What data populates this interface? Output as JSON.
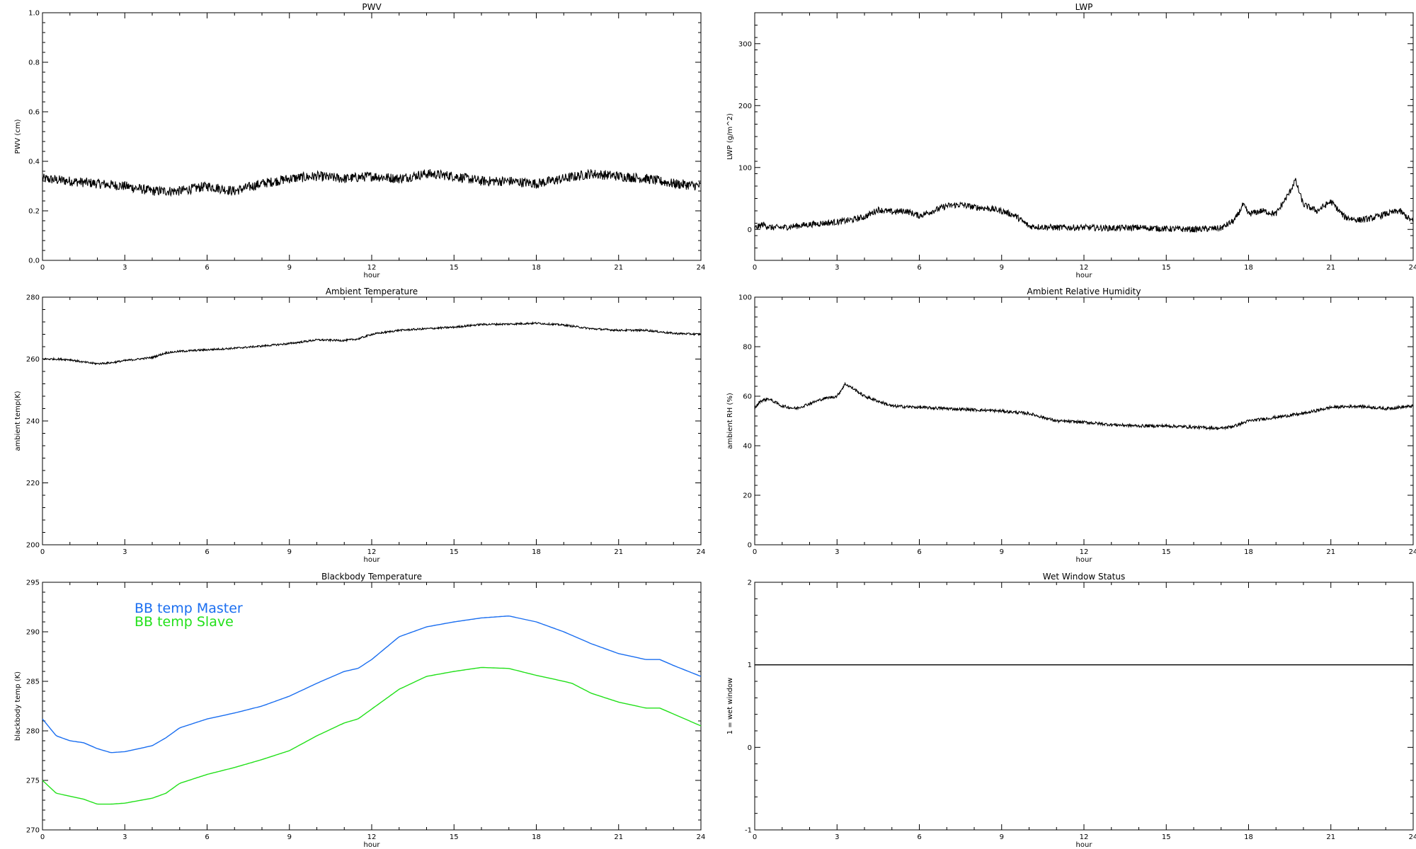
{
  "chart_data": [
    {
      "id": "pwv",
      "type": "line",
      "title": "PWV",
      "xlabel": "hour",
      "ylabel": "PWV (cm)",
      "xlim": [
        0,
        24
      ],
      "ylim": [
        0,
        1
      ],
      "xticks": [
        "0",
        "3",
        "6",
        "9",
        "12",
        "15",
        "18",
        "21",
        "24"
      ],
      "yticks": [
        "0.0",
        "0.2",
        "0.4",
        "0.6",
        "0.8",
        "1.0"
      ],
      "noise": 0.02,
      "series": [
        {
          "color": "#000000",
          "points": [
            [
              0,
              0.33
            ],
            [
              1,
              0.32
            ],
            [
              2,
              0.31
            ],
            [
              3,
              0.3
            ],
            [
              4,
              0.28
            ],
            [
              5,
              0.28
            ],
            [
              6,
              0.3
            ],
            [
              7,
              0.28
            ],
            [
              8,
              0.31
            ],
            [
              9,
              0.33
            ],
            [
              10,
              0.34
            ],
            [
              11,
              0.33
            ],
            [
              12,
              0.34
            ],
            [
              13,
              0.33
            ],
            [
              14,
              0.35
            ],
            [
              15,
              0.34
            ],
            [
              16,
              0.32
            ],
            [
              17,
              0.32
            ],
            [
              18,
              0.31
            ],
            [
              19,
              0.33
            ],
            [
              20,
              0.35
            ],
            [
              21,
              0.34
            ],
            [
              22,
              0.33
            ],
            [
              23,
              0.31
            ],
            [
              24,
              0.3
            ]
          ]
        }
      ]
    },
    {
      "id": "lwp",
      "type": "line",
      "title": "LWP",
      "xlabel": "hour",
      "ylabel": "LWP (g/m^2)",
      "xlim": [
        0,
        24
      ],
      "ylim": [
        -50,
        350
      ],
      "xticks": [
        "0",
        "3",
        "6",
        "9",
        "12",
        "15",
        "18",
        "21",
        "24"
      ],
      "yticks": [
        "0",
        "100",
        "200",
        "300"
      ],
      "noise": 5,
      "series": [
        {
          "color": "#000000",
          "points": [
            [
              0,
              2
            ],
            [
              0.3,
              8
            ],
            [
              0.6,
              3
            ],
            [
              1,
              3
            ],
            [
              2,
              8
            ],
            [
              3,
              12
            ],
            [
              3.5,
              15
            ],
            [
              4,
              20
            ],
            [
              4.5,
              32
            ],
            [
              5,
              28
            ],
            [
              5.5,
              30
            ],
            [
              6,
              22
            ],
            [
              6.5,
              30
            ],
            [
              7,
              38
            ],
            [
              7.5,
              40
            ],
            [
              8,
              36
            ],
            [
              8.5,
              34
            ],
            [
              9,
              30
            ],
            [
              9.5,
              22
            ],
            [
              10,
              5
            ],
            [
              11,
              3
            ],
            [
              12,
              3
            ],
            [
              13,
              2
            ],
            [
              14,
              3
            ],
            [
              15,
              1
            ],
            [
              16,
              0
            ],
            [
              17,
              2
            ],
            [
              17.5,
              15
            ],
            [
              17.8,
              40
            ],
            [
              18,
              25
            ],
            [
              18.5,
              30
            ],
            [
              19,
              25
            ],
            [
              19.5,
              60
            ],
            [
              19.7,
              80
            ],
            [
              20,
              40
            ],
            [
              20.5,
              30
            ],
            [
              21,
              45
            ],
            [
              21.5,
              20
            ],
            [
              22,
              15
            ],
            [
              22.5,
              18
            ],
            [
              23,
              25
            ],
            [
              23.5,
              30
            ],
            [
              24,
              12
            ]
          ]
        }
      ]
    },
    {
      "id": "ambient_temperature",
      "type": "line",
      "title": "Ambient Temperature",
      "xlabel": "hour",
      "ylabel": "ambient temp(K)",
      "xlim": [
        0,
        24
      ],
      "ylim": [
        200,
        280
      ],
      "xticks": [
        "0",
        "3",
        "6",
        "9",
        "12",
        "15",
        "18",
        "21",
        "24"
      ],
      "yticks": [
        "200",
        "220",
        "240",
        "260",
        "280"
      ],
      "noise": 0.3,
      "series": [
        {
          "color": "#000000",
          "points": [
            [
              0,
              260
            ],
            [
              0.5,
              260
            ],
            [
              1,
              259.8
            ],
            [
              1.5,
              259
            ],
            [
              2,
              258.5
            ],
            [
              2.5,
              258.8
            ],
            [
              3,
              259.5
            ],
            [
              4,
              260.5
            ],
            [
              4.5,
              262
            ],
            [
              5,
              262.5
            ],
            [
              6,
              263
            ],
            [
              7,
              263.5
            ],
            [
              8,
              264.2
            ],
            [
              9,
              265
            ],
            [
              10,
              266.2
            ],
            [
              11,
              266
            ],
            [
              11.5,
              266.5
            ],
            [
              12,
              268
            ],
            [
              13,
              269.3
            ],
            [
              14,
              269.8
            ],
            [
              15,
              270.3
            ],
            [
              16,
              271.2
            ],
            [
              17,
              271.3
            ],
            [
              18,
              271.6
            ],
            [
              19,
              271
            ],
            [
              20,
              269.8
            ],
            [
              21,
              269.3
            ],
            [
              22,
              269.3
            ],
            [
              23,
              268.3
            ],
            [
              24,
              268
            ]
          ]
        }
      ]
    },
    {
      "id": "ambient_rh",
      "type": "line",
      "title": "Ambient Relative Humidity",
      "xlabel": "hour",
      "ylabel": "ambient RH (%)",
      "xlim": [
        0,
        24
      ],
      "ylim": [
        0,
        100
      ],
      "xticks": [
        "0",
        "3",
        "6",
        "9",
        "12",
        "15",
        "18",
        "21",
        "24"
      ],
      "yticks": [
        "0",
        "20",
        "40",
        "60",
        "80",
        "100"
      ],
      "noise": 0.6,
      "series": [
        {
          "color": "#000000",
          "points": [
            [
              0,
              55
            ],
            [
              0.2,
              58
            ],
            [
              0.5,
              59
            ],
            [
              1,
              56
            ],
            [
              1.5,
              55
            ],
            [
              2,
              57
            ],
            [
              2.5,
              59
            ],
            [
              3,
              60
            ],
            [
              3.3,
              65
            ],
            [
              3.6,
              63
            ],
            [
              4,
              60
            ],
            [
              4.5,
              58
            ],
            [
              5,
              56
            ],
            [
              6,
              55.5
            ],
            [
              7,
              55
            ],
            [
              8,
              54.5
            ],
            [
              9,
              54
            ],
            [
              10,
              53
            ],
            [
              11,
              50
            ],
            [
              12,
              49.5
            ],
            [
              13,
              48.5
            ],
            [
              14,
              48
            ],
            [
              15,
              48
            ],
            [
              16,
              47.5
            ],
            [
              17,
              47
            ],
            [
              17.5,
              48
            ],
            [
              18,
              50
            ],
            [
              19,
              51.5
            ],
            [
              20,
              53
            ],
            [
              21,
              55.5
            ],
            [
              22,
              56
            ],
            [
              23,
              55
            ],
            [
              24,
              56
            ]
          ]
        }
      ]
    },
    {
      "id": "blackbody_temperature",
      "type": "line",
      "title": "Blackbody Temperature",
      "xlabel": "hour",
      "ylabel": "blackbody temp (K)",
      "xlim": [
        0,
        24
      ],
      "ylim": [
        270,
        295
      ],
      "xticks": [
        "0",
        "3",
        "6",
        "9",
        "12",
        "15",
        "18",
        "21",
        "24"
      ],
      "yticks": [
        "270",
        "275",
        "280",
        "285",
        "290",
        "295"
      ],
      "noise": 0,
      "legend": [
        "BB temp Master",
        "BB temp Slave"
      ],
      "series": [
        {
          "name": "BB temp Master",
          "color": "#1a6ef0",
          "points": [
            [
              0,
              281.2
            ],
            [
              0.5,
              279.5
            ],
            [
              1,
              279
            ],
            [
              1.5,
              278.8
            ],
            [
              2,
              278.2
            ],
            [
              2.5,
              277.8
            ],
            [
              3,
              277.9
            ],
            [
              4,
              278.5
            ],
            [
              4.5,
              279.3
            ],
            [
              5,
              280.3
            ],
            [
              6,
              281.2
            ],
            [
              7,
              281.8
            ],
            [
              8,
              282.5
            ],
            [
              9,
              283.5
            ],
            [
              10,
              284.8
            ],
            [
              11,
              286
            ],
            [
              11.5,
              286.3
            ],
            [
              12,
              287.2
            ],
            [
              13,
              289.5
            ],
            [
              14,
              290.5
            ],
            [
              15,
              291
            ],
            [
              16,
              291.4
            ],
            [
              17,
              291.6
            ],
            [
              18,
              291
            ],
            [
              19,
              290
            ],
            [
              20,
              288.8
            ],
            [
              21,
              287.8
            ],
            [
              22,
              287.2
            ],
            [
              22.5,
              287.2
            ],
            [
              23,
              286.6
            ],
            [
              24,
              285.5
            ]
          ]
        },
        {
          "name": "BB temp Slave",
          "color": "#22e01a",
          "points": [
            [
              0,
              275
            ],
            [
              0.5,
              273.7
            ],
            [
              1,
              273.4
            ],
            [
              1.5,
              273.1
            ],
            [
              2,
              272.6
            ],
            [
              2.5,
              272.6
            ],
            [
              3,
              272.7
            ],
            [
              4,
              273.2
            ],
            [
              4.5,
              273.7
            ],
            [
              5,
              274.7
            ],
            [
              6,
              275.6
            ],
            [
              7,
              276.3
            ],
            [
              8,
              277.1
            ],
            [
              9,
              278
            ],
            [
              10,
              279.5
            ],
            [
              11,
              280.8
            ],
            [
              11.5,
              281.2
            ],
            [
              12,
              282.2
            ],
            [
              13,
              284.2
            ],
            [
              14,
              285.5
            ],
            [
              15,
              286
            ],
            [
              16,
              286.4
            ],
            [
              17,
              286.3
            ],
            [
              18,
              285.6
            ],
            [
              19,
              285
            ],
            [
              19.3,
              284.8
            ],
            [
              20,
              283.8
            ],
            [
              21,
              282.9
            ],
            [
              22,
              282.3
            ],
            [
              22.5,
              282.3
            ],
            [
              23,
              281.7
            ],
            [
              24,
              280.5
            ]
          ]
        }
      ]
    },
    {
      "id": "wet_window",
      "type": "line",
      "title": "Wet Window Status",
      "xlabel": "hour",
      "ylabel": "1 = wet window",
      "xlim": [
        0,
        24
      ],
      "ylim": [
        -1,
        2
      ],
      "xticks": [
        "0",
        "3",
        "6",
        "9",
        "12",
        "15",
        "18",
        "21",
        "24"
      ],
      "yticks": [
        "-1",
        "0",
        "1",
        "2"
      ],
      "noise": 0,
      "series": [
        {
          "color": "#000000",
          "points": [
            [
              0,
              1
            ],
            [
              24,
              1
            ]
          ]
        }
      ]
    }
  ]
}
